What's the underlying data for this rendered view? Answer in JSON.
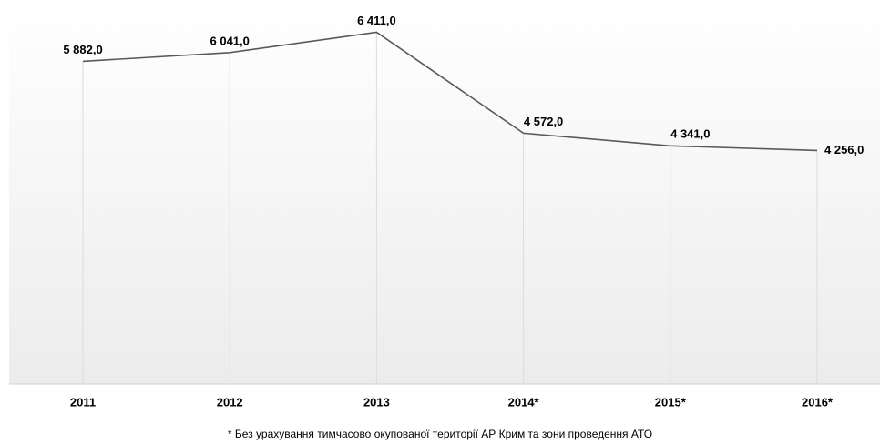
{
  "chart_data": {
    "type": "line",
    "categories": [
      "2011",
      "2012",
      "2013",
      "2014*",
      "2015*",
      "2016*"
    ],
    "series": [
      {
        "color": "#595959",
        "values": [
          5882,
          6041,
          6411,
          4572,
          4341,
          4256
        ],
        "value_labels": [
          "5 882,0",
          "6 041,0",
          "6 411,0",
          "4 572,0",
          "4 341,0",
          "4 256,0"
        ]
      }
    ],
    "ylim": [
      0,
      7000
    ],
    "footnote": "* Без урахування тимчасово окупованої території АР Крим та зони проведення АТО"
  }
}
